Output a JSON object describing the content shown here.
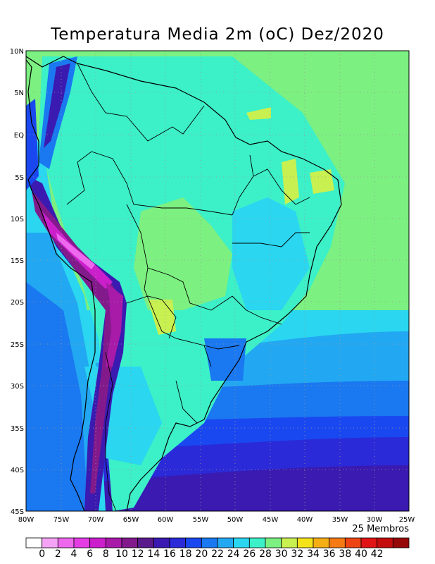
{
  "title": "Temperatura Media 2m (oC) Dez/2020",
  "lat_labels": [
    "10N",
    "5N",
    "EQ",
    "5S",
    "10S",
    "15S",
    "20S",
    "25S",
    "30S",
    "35S",
    "40S",
    "45S"
  ],
  "lon_labels": [
    "80W",
    "75W",
    "70W",
    "65W",
    "60W",
    "55W",
    "50W",
    "45W",
    "40W",
    "35W",
    "30W",
    "25W"
  ],
  "members_note": "25 Membros",
  "colorbar": {
    "labels": [
      "0",
      "2",
      "4",
      "6",
      "8",
      "10",
      "12",
      "14",
      "16",
      "18",
      "20",
      "22",
      "24",
      "26",
      "28",
      "30",
      "32",
      "34",
      "36",
      "38",
      "40",
      "42"
    ],
    "colors": [
      "#ffffff",
      "#f5a3f5",
      "#ee68ee",
      "#e43de4",
      "#cc1fcc",
      "#a81aa8",
      "#821a8c",
      "#5a1a8c",
      "#3a1ab0",
      "#2a2ad8",
      "#1a48f0",
      "#1a78f0",
      "#22a8f2",
      "#2ad6f0",
      "#3cf0c8",
      "#7cf080",
      "#c8f050",
      "#f5e31a",
      "#f5ae14",
      "#f57a14",
      "#ee4414",
      "#e01414",
      "#c40c0c",
      "#960808"
    ]
  }
}
